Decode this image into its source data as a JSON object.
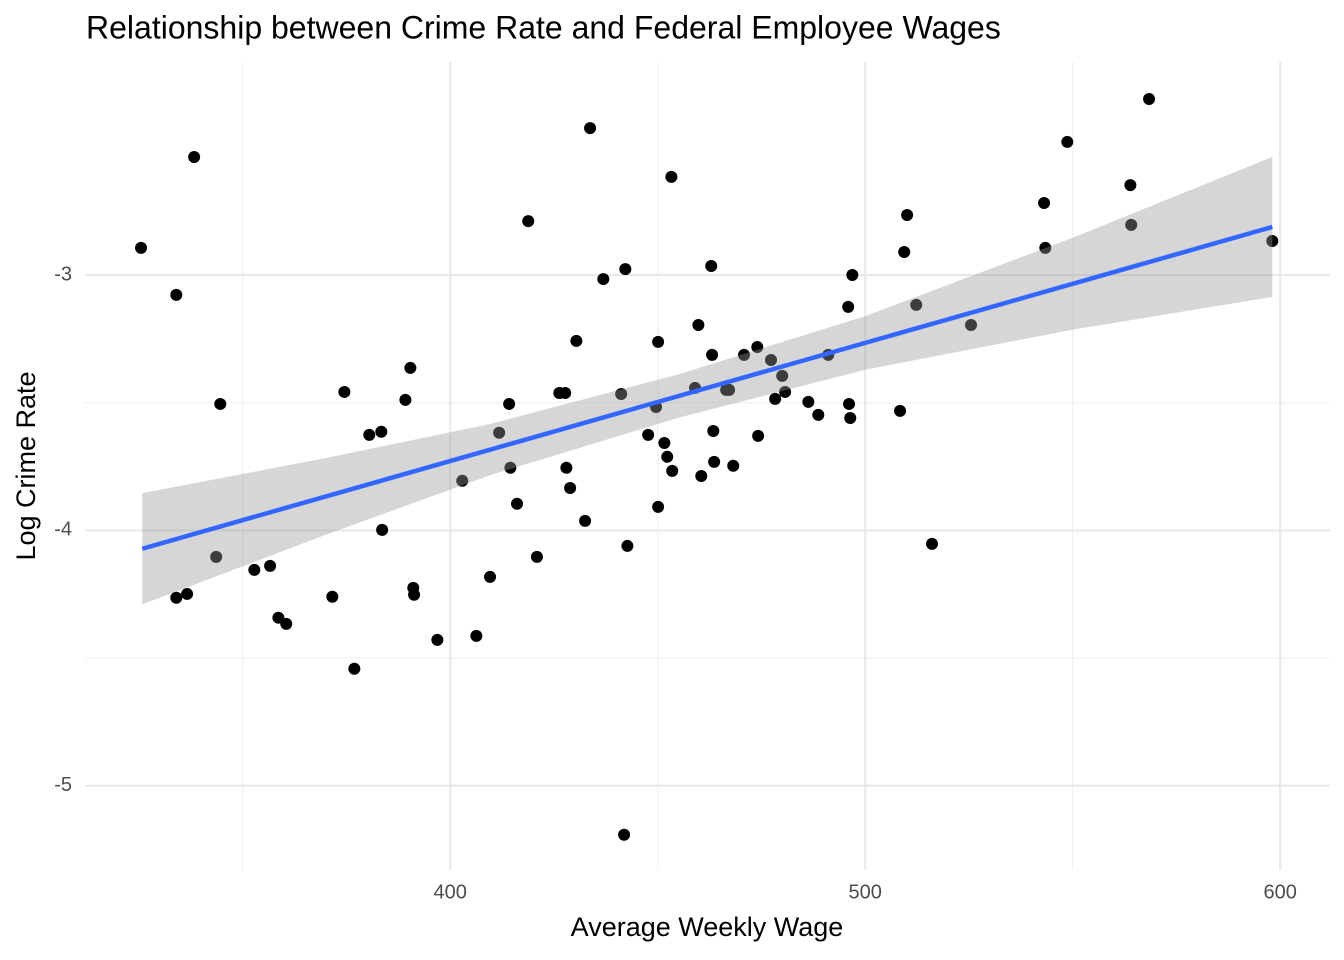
{
  "chart_data": {
    "type": "scatter",
    "title": "Relationship between Crime Rate and Federal Employee Wages",
    "x_label": "Average Weekly Wage",
    "y_label": "Log Crime Rate",
    "x": [
      325.5,
      338.3,
      334.0,
      344.6,
      334.0,
      336.6,
      343.6,
      352.8,
      356.6,
      358.6,
      360.5,
      371.6,
      374.5,
      376.9,
      380.5,
      383.4,
      383.6,
      389.2,
      390.4,
      391.1,
      391.3,
      396.9,
      402.9,
      406.3,
      409.6,
      411.8,
      414.2,
      414.5,
      416.1,
      418.8,
      420.9,
      426.3,
      427.7,
      428.0,
      428.9,
      430.4,
      432.5,
      433.7,
      436.9,
      441.2,
      442.2,
      441.9,
      442.7,
      447.7,
      449.6,
      450.1,
      450.1,
      451.6,
      452.3,
      453.3,
      453.5,
      459.0,
      459.8,
      460.5,
      462.9,
      463.1,
      463.4,
      463.6,
      466.5,
      467.2,
      468.2,
      470.8,
      474.0,
      474.2,
      477.3,
      478.3,
      480.0,
      480.7,
      486.3,
      488.7,
      491.1,
      495.9,
      496.1,
      496.4,
      496.9,
      508.4,
      509.4,
      510.1,
      512.3,
      516.1,
      525.5,
      543.1,
      543.4,
      548.7,
      563.9,
      564.1,
      568.4,
      598.1
    ],
    "values": [
      -2.894,
      -2.538,
      -3.078,
      -3.505,
      -4.264,
      -4.249,
      -4.104,
      -4.155,
      -4.139,
      -4.342,
      -4.366,
      -4.26,
      -3.458,
      -4.542,
      -3.626,
      -3.614,
      -3.998,
      -3.489,
      -3.364,
      -4.225,
      -4.252,
      -4.429,
      -3.806,
      -4.413,
      -4.182,
      -3.618,
      -3.505,
      -3.755,
      -3.896,
      -2.789,
      -4.104,
      -3.462,
      -3.462,
      -3.755,
      -3.834,
      -3.258,
      -3.963,
      -2.425,
      -3.016,
      -3.466,
      -2.977,
      -5.192,
      -4.061,
      -3.626,
      -3.517,
      -3.262,
      -3.908,
      -3.658,
      -3.712,
      -2.616,
      -3.767,
      -3.442,
      -3.196,
      -3.787,
      -2.965,
      -3.313,
      -3.611,
      -3.732,
      -3.45,
      -3.45,
      -3.747,
      -3.313,
      -3.282,
      -3.63,
      -3.333,
      -3.485,
      -3.395,
      -3.458,
      -3.497,
      -3.548,
      -3.313,
      -3.125,
      -3.505,
      -3.56,
      -3.0,
      -3.532,
      -2.91,
      -2.765,
      -3.117,
      -4.053,
      -3.196,
      -2.718,
      -2.894,
      -2.479,
      -2.648,
      -2.804,
      -2.311,
      -2.867
    ],
    "color": "#000000",
    "fit_line": {
      "color": "#3366ff",
      "x": [
        325.8,
        598.1
      ],
      "values": [
        -4.072,
        -2.812
      ]
    },
    "band": {
      "color": "#999999",
      "x": [
        325.8,
        370,
        410,
        455,
        500,
        550,
        598.1
      ],
      "lower": [
        -4.29,
        -4.017,
        -3.782,
        -3.559,
        -3.371,
        -3.214,
        -3.086
      ],
      "upper": [
        -3.854,
        -3.717,
        -3.582,
        -3.389,
        -3.161,
        -2.854,
        -2.538
      ]
    },
    "xlim": [
      312,
      612
    ],
    "ylim": [
      -5.33,
      -2.166
    ],
    "xticks": [
      400,
      500,
      600
    ],
    "yticks": [
      -5,
      -4,
      -3
    ],
    "x_minor_ticks": [
      350,
      450,
      550
    ],
    "y_minor_ticks": [
      -4.5,
      -3.5
    ],
    "grid": true
  }
}
